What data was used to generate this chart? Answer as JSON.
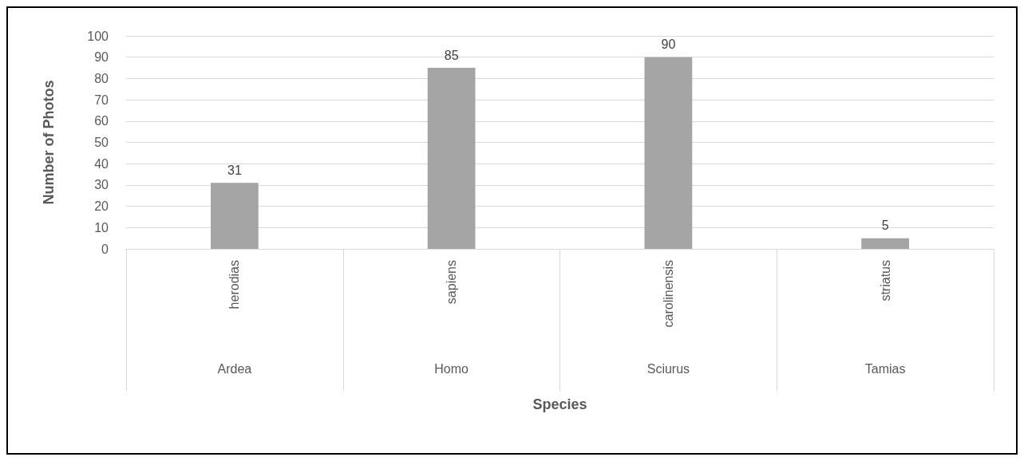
{
  "chart_data": {
    "type": "bar",
    "xlabel": "Species",
    "ylabel": "Number of Photos",
    "categories": [
      "herodias",
      "sapiens",
      "carolinensis",
      "striatus"
    ],
    "values": [
      31,
      85,
      90,
      5
    ],
    "color": "#a5a5a5",
    "data_labels": true,
    "ylim": [
      0,
      100
    ],
    "yticks": [
      0,
      10,
      20,
      30,
      40,
      50,
      60,
      70,
      80,
      90,
      100
    ],
    "grid": "y",
    "annotations": [
      "Ardea",
      "Homo",
      "Sciurus",
      "Tamias"
    ]
  }
}
